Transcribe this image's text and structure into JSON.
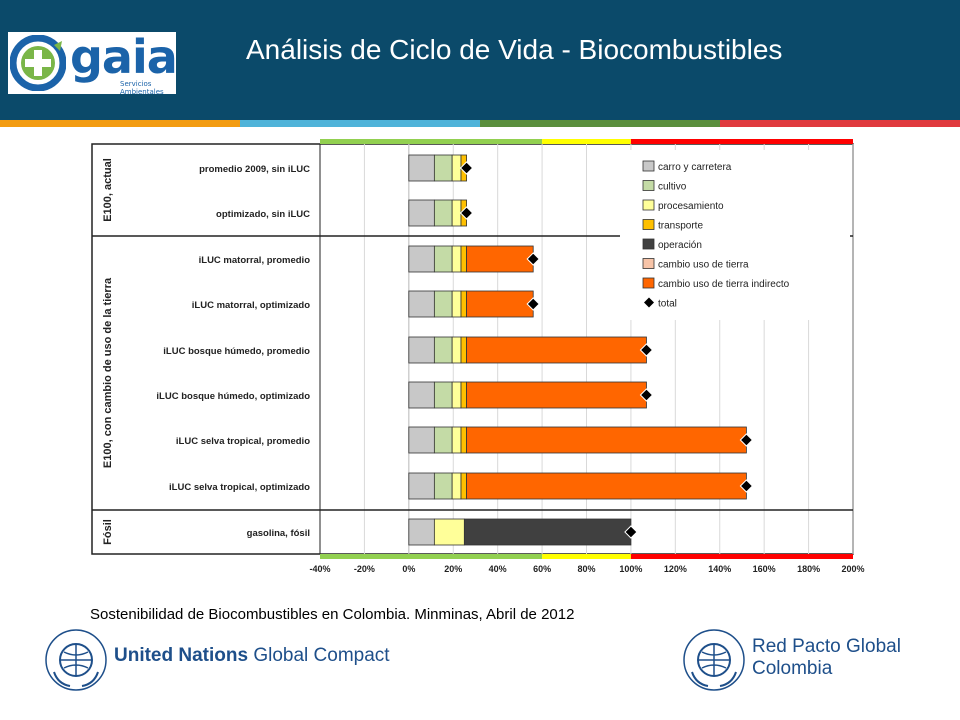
{
  "header": {
    "title": "Análisis de Ciclo de Vida - Biocombustibles",
    "logo_text": "gaia",
    "logo_subtitle": "Servicios Ambientales",
    "bg_color": "#0b4a6a"
  },
  "caption": "Sostenibilidad de Biocombustibles en Colombia. Minminas, Abril de 2012",
  "footer": {
    "un_bold": "United Nations",
    "un_rest": "Global Compact",
    "seal_text": "THE GLOBAL COMPACT",
    "rp_line1": "Red Pacto Global",
    "rp_line2": "Colombia"
  },
  "chart_data": {
    "type": "bar",
    "orientation": "horizontal",
    "stacked": true,
    "xlim": [
      -40,
      200
    ],
    "xticks": [
      "-40%",
      "-20%",
      "0%",
      "20%",
      "40%",
      "60%",
      "80%",
      "100%",
      "120%",
      "140%",
      "160%",
      "180%",
      "200%"
    ],
    "grid": true,
    "legend_position": "top-right",
    "groups": [
      {
        "label": "E100, actual",
        "categories": [
          "promedio 2009, sin iLUC",
          "optimizado, sin iLUC"
        ]
      },
      {
        "label": "E100, con cambio de uso de la tierra",
        "categories": [
          "iLUC matorral, promedio",
          "iLUC matorral, optimizado",
          "iLUC bosque húmedo, promedio",
          "iLUC bosque húmedo, optimizado",
          "iLUC selva tropical, promedio",
          "iLUC selva tropical, optimizado"
        ]
      },
      {
        "label": "Fósil",
        "categories": [
          "gasolina, fósil"
        ]
      }
    ],
    "categories": [
      "promedio 2009, sin iLUC",
      "optimizado, sin iLUC",
      "iLUC matorral, promedio",
      "iLUC matorral, optimizado",
      "iLUC bosque húmedo, promedio",
      "iLUC bosque húmedo, optimizado",
      "iLUC selva tropical, promedio",
      "iLUC selva tropical, optimizado",
      "gasolina, fósil"
    ],
    "series": [
      {
        "name": "carro y carretera",
        "color": "#c8c8c8",
        "values": [
          11.5,
          11.5,
          11.5,
          11.5,
          11.5,
          11.5,
          11.5,
          11.5,
          11.5
        ]
      },
      {
        "name": "cultivo",
        "color": "#c4dba6",
        "values": [
          8,
          8,
          8,
          8,
          8,
          8,
          8,
          8,
          0
        ]
      },
      {
        "name": "procesamiento",
        "color": "#ffff99",
        "values": [
          4,
          4,
          4,
          4,
          4,
          4,
          4,
          4,
          13.5
        ]
      },
      {
        "name": "transporte",
        "color": "#ffc000",
        "values": [
          2.5,
          2.5,
          2.5,
          2.5,
          2.5,
          2.5,
          2.5,
          2.5,
          0
        ]
      },
      {
        "name": "operación",
        "color": "#404040",
        "values": [
          0,
          0,
          0,
          0,
          0,
          0,
          0,
          0,
          75
        ]
      },
      {
        "name": "cambio uso de tierra",
        "color": "#f7c4a8",
        "values": [
          0,
          0,
          0,
          0,
          0,
          0,
          0,
          0,
          0
        ]
      },
      {
        "name": "cambio uso de tierra indirecto",
        "color": "#ff6600",
        "values": [
          0,
          0,
          30,
          30,
          81,
          81,
          126,
          126,
          0
        ]
      }
    ],
    "total": {
      "name": "total",
      "values": [
        26,
        26,
        56,
        56,
        107,
        107,
        152,
        152,
        100
      ]
    },
    "top_band": [
      {
        "from": -40,
        "to": 60,
        "color": "#92d050"
      },
      {
        "from": 60,
        "to": 100,
        "color": "#ffff00"
      },
      {
        "from": 100,
        "to": 200,
        "color": "#ff0000"
      }
    ]
  }
}
